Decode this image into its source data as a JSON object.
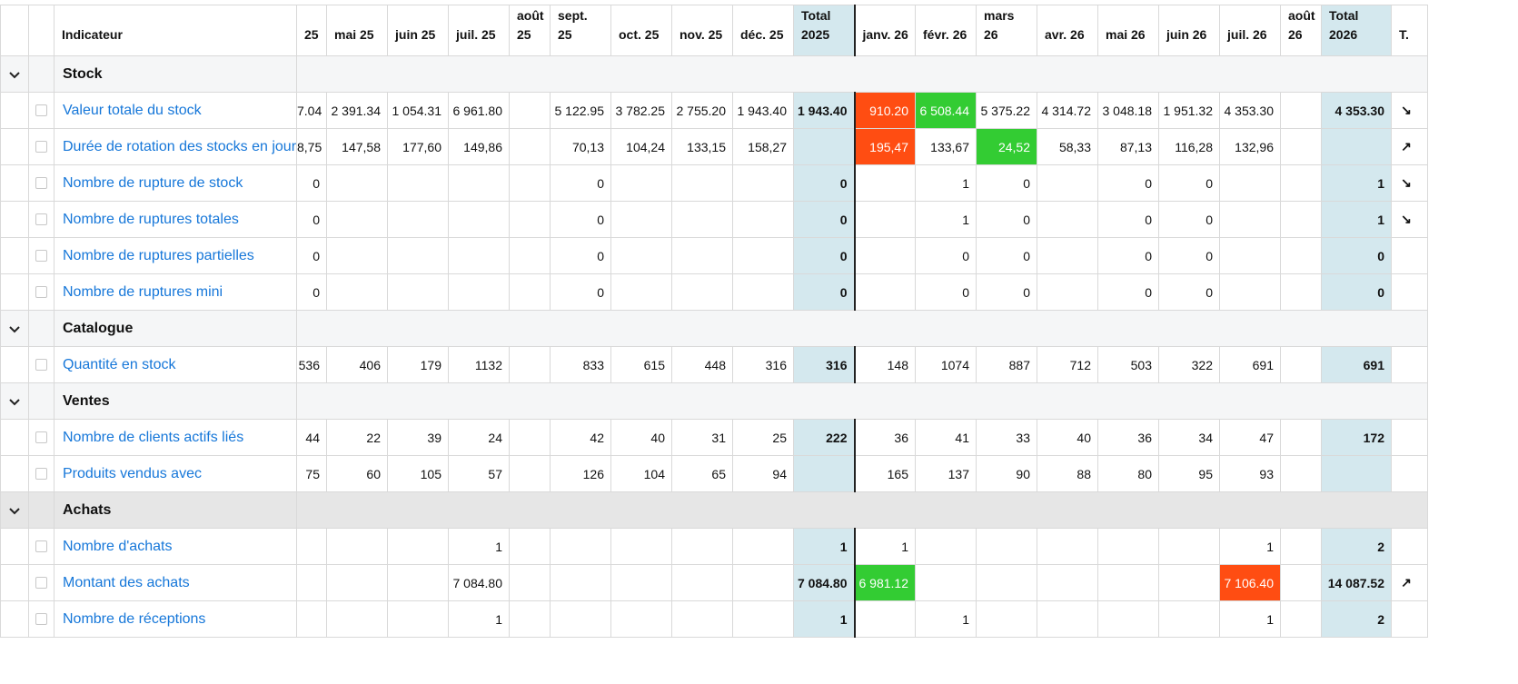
{
  "header": {
    "indicator_label": "Indicateur",
    "months_2025": [
      "25",
      "mai 25",
      "juin 25",
      "juil. 25",
      "août 25",
      "sept. 25",
      "oct. 25",
      "nov. 25",
      "déc. 25"
    ],
    "total_2025": "Total 2025",
    "months_2026": [
      "janv. 26",
      "févr. 26",
      "mars 26",
      "avr. 26",
      "mai 26",
      "juin 26",
      "juil. 26",
      "août 26"
    ],
    "total_2026": "Total 2026",
    "trend_col": "T."
  },
  "groups": [
    {
      "label": "Stock",
      "rows": [
        {
          "label": "Valeur totale du stock",
          "v25": [
            "7.04",
            "2 391.34",
            "1 054.31",
            "6 961.80",
            "",
            "5 122.95",
            "3 782.25",
            "2 755.20",
            "1 943.40"
          ],
          "t25": "1 943.40",
          "v26": [
            "910.20",
            "6 508.44",
            "5 375.22",
            "4 314.72",
            "3 048.18",
            "1 951.32",
            "4 353.30",
            ""
          ],
          "t26": "4 353.30",
          "trend": "↘"
        },
        {
          "label": "Durée de rotation des stocks en jours",
          "v25": [
            "8,75",
            "147,58",
            "177,60",
            "149,86",
            "",
            "70,13",
            "104,24",
            "133,15",
            "158,27"
          ],
          "t25": "",
          "v26": [
            "195,47",
            "133,67",
            "24,52",
            "58,33",
            "87,13",
            "116,28",
            "132,96",
            ""
          ],
          "t26": "",
          "trend": "↗"
        },
        {
          "label": "Nombre de rupture de stock",
          "v25": [
            "0",
            "",
            "",
            "",
            "",
            "0",
            "",
            "",
            ""
          ],
          "t25": "0",
          "v26": [
            "",
            "1",
            "0",
            "",
            "0",
            "0",
            "",
            ""
          ],
          "t26": "1",
          "trend": "↘"
        },
        {
          "label": "Nombre de ruptures totales",
          "v25": [
            "0",
            "",
            "",
            "",
            "",
            "0",
            "",
            "",
            ""
          ],
          "t25": "0",
          "v26": [
            "",
            "1",
            "0",
            "",
            "0",
            "0",
            "",
            ""
          ],
          "t26": "1",
          "trend": "↘"
        },
        {
          "label": "Nombre de ruptures partielles",
          "v25": [
            "0",
            "",
            "",
            "",
            "",
            "0",
            "",
            "",
            ""
          ],
          "t25": "0",
          "v26": [
            "",
            "0",
            "0",
            "",
            "0",
            "0",
            "",
            ""
          ],
          "t26": "0",
          "trend": ""
        },
        {
          "label": "Nombre de ruptures mini",
          "v25": [
            "0",
            "",
            "",
            "",
            "",
            "0",
            "",
            "",
            ""
          ],
          "t25": "0",
          "v26": [
            "",
            "0",
            "0",
            "",
            "0",
            "0",
            "",
            ""
          ],
          "t26": "0",
          "trend": ""
        }
      ]
    },
    {
      "label": "Catalogue",
      "rows": [
        {
          "label": "Quantité en stock",
          "v25": [
            "536",
            "406",
            "179",
            "1132",
            "",
            "833",
            "615",
            "448",
            "316"
          ],
          "t25": "316",
          "v26": [
            "148",
            "1074",
            "887",
            "712",
            "503",
            "322",
            "691",
            ""
          ],
          "t26": "691",
          "trend": ""
        }
      ]
    },
    {
      "label": "Ventes",
      "rows": [
        {
          "label": "Nombre de clients actifs liés",
          "v25": [
            "44",
            "22",
            "39",
            "24",
            "",
            "42",
            "40",
            "31",
            "25"
          ],
          "t25": "222",
          "v26": [
            "36",
            "41",
            "33",
            "40",
            "36",
            "34",
            "47",
            ""
          ],
          "t26": "172",
          "trend": ""
        },
        {
          "label": "Produits vendus avec",
          "v25": [
            "75",
            "60",
            "105",
            "57",
            "",
            "126",
            "104",
            "65",
            "94"
          ],
          "t25": "",
          "v26": [
            "165",
            "137",
            "90",
            "88",
            "80",
            "95",
            "93",
            ""
          ],
          "t26": "",
          "trend": ""
        }
      ]
    },
    {
      "label": "Achats",
      "rows": [
        {
          "label": "Nombre d'achats",
          "v25": [
            "",
            "",
            "",
            "1",
            "",
            "",
            "",
            "",
            ""
          ],
          "t25": "1",
          "v26": [
            "1",
            "",
            "",
            "",
            "",
            "",
            "1",
            ""
          ],
          "t26": "2",
          "trend": ""
        },
        {
          "label": "Montant des achats",
          "v25": [
            "",
            "",
            "",
            "7 084.80",
            "",
            "",
            "",
            "",
            ""
          ],
          "t25": "7 084.80",
          "v26": [
            "6 981.12",
            "",
            "",
            "",
            "",
            "",
            "7 106.40",
            ""
          ],
          "t26": "14 087.52",
          "trend": "↗"
        },
        {
          "label": "Nombre de réceptions",
          "v25": [
            "",
            "",
            "",
            "1",
            "",
            "",
            "",
            "",
            ""
          ],
          "t25": "1",
          "v26": [
            "",
            "1",
            "",
            "",
            "",
            "",
            "1",
            ""
          ],
          "t26": "2",
          "trend": ""
        }
      ]
    }
  ],
  "highlights": {
    "red_color": "#ff4d12",
    "green_color": "#33cc33",
    "total_bg": "#d4e8ee",
    "cells": [
      {
        "row": "Valeur totale du stock",
        "col": "janv. 26",
        "status": "red"
      },
      {
        "row": "Valeur totale du stock",
        "col": "févr. 26",
        "status": "green"
      },
      {
        "row": "Durée de rotation des stocks en jours",
        "col": "janv. 26",
        "status": "red"
      },
      {
        "row": "Durée de rotation des stocks en jours",
        "col": "mars 26",
        "status": "green"
      },
      {
        "row": "Montant des achats",
        "col": "janv. 26",
        "status": "green"
      },
      {
        "row": "Montant des achats",
        "col": "juil. 26",
        "status": "red"
      }
    ]
  }
}
